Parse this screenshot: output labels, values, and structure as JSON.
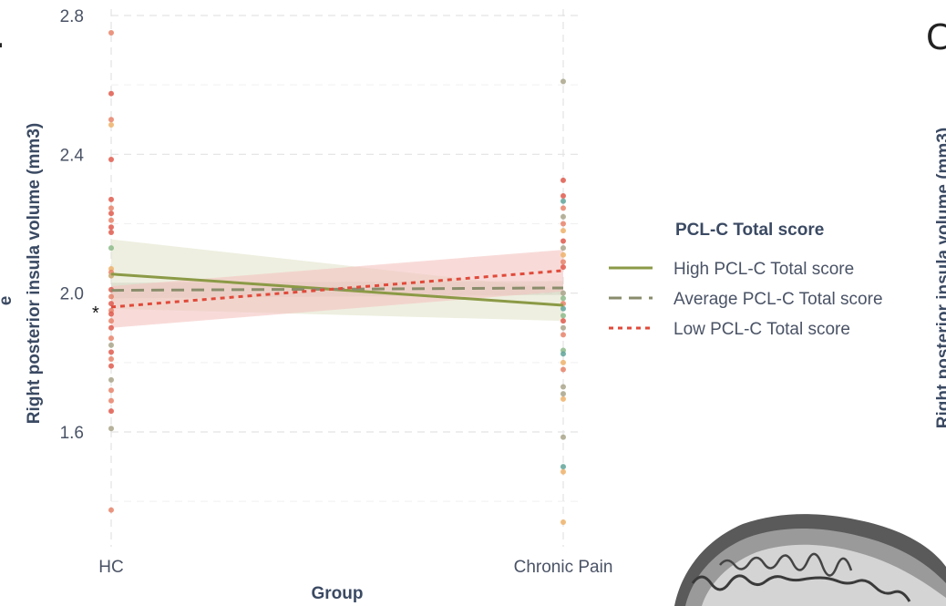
{
  "chart_data": {
    "type": "line",
    "title": "",
    "xlabel": "Group",
    "ylabel": "Right posterior insula volume (mm3)",
    "categories": [
      "HC",
      "Chronic Pain"
    ],
    "ylim": [
      1.27,
      2.81
    ],
    "yticks": [
      1.6,
      2.0,
      2.4,
      2.8
    ],
    "ytick_labels": [
      "1.6",
      "2.0",
      "2.4",
      "2.8"
    ],
    "grid": true,
    "legend_title": "PCL-C Total score",
    "legend_position": "right",
    "significance_marker": "*",
    "series": [
      {
        "name": "High PCL-C Total score",
        "values": [
          2.055,
          1.965
        ],
        "ci_low": [
          1.955,
          1.92
        ],
        "ci_high": [
          2.155,
          2.01
        ],
        "color": "#8b9a46",
        "dash": "solid",
        "fill": "#e3e4cc"
      },
      {
        "name": "Average PCL-C Total score",
        "values": [
          2.008,
          2.015
        ],
        "ci_low": [
          1.985,
          1.995
        ],
        "ci_high": [
          2.03,
          2.035
        ],
        "color": "#8a8d6c",
        "dash": "longdash",
        "fill": "#d6d6c4"
      },
      {
        "name": "Low PCL-C Total score",
        "values": [
          1.96,
          2.065
        ],
        "ci_low": [
          1.9,
          2.005
        ],
        "ci_high": [
          2.02,
          2.125
        ],
        "color": "#e04a3a",
        "dash": "dotted",
        "fill": "#f3c3c0"
      }
    ],
    "points": {
      "HC": [
        {
          "y": 2.75,
          "c": "#e8826a"
        },
        {
          "y": 2.575,
          "c": "#e15a4d"
        },
        {
          "y": 2.5,
          "c": "#e8826a"
        },
        {
          "y": 2.485,
          "c": "#eeb26a"
        },
        {
          "y": 2.385,
          "c": "#e15a4d"
        },
        {
          "y": 2.27,
          "c": "#e15a4d"
        },
        {
          "y": 2.245,
          "c": "#e8826a"
        },
        {
          "y": 2.23,
          "c": "#e15a4d"
        },
        {
          "y": 2.21,
          "c": "#e8826a"
        },
        {
          "y": 2.19,
          "c": "#e15a4d"
        },
        {
          "y": 2.175,
          "c": "#e15a4d"
        },
        {
          "y": 2.13,
          "c": "#8cba8a"
        },
        {
          "y": 2.07,
          "c": "#eeb26a"
        },
        {
          "y": 2.06,
          "c": "#e8826a"
        },
        {
          "y": 2.05,
          "c": "#c9a46a"
        },
        {
          "y": 2.01,
          "c": "#e15a4d"
        },
        {
          "y": 1.99,
          "c": "#e8826a"
        },
        {
          "y": 1.97,
          "c": "#e15a4d"
        },
        {
          "y": 1.95,
          "c": "#e8826a"
        },
        {
          "y": 1.94,
          "c": "#e15a4d"
        },
        {
          "y": 1.92,
          "c": "#e8826a"
        },
        {
          "y": 1.9,
          "c": "#e15a4d"
        },
        {
          "y": 1.87,
          "c": "#e8826a"
        },
        {
          "y": 1.85,
          "c": "#a9a48a"
        },
        {
          "y": 1.83,
          "c": "#e15a4d"
        },
        {
          "y": 1.81,
          "c": "#e8826a"
        },
        {
          "y": 1.79,
          "c": "#e15a4d"
        },
        {
          "y": 1.75,
          "c": "#a9a48a"
        },
        {
          "y": 1.72,
          "c": "#e8826a"
        },
        {
          "y": 1.69,
          "c": "#e8826a"
        },
        {
          "y": 1.66,
          "c": "#e15a4d"
        },
        {
          "y": 1.61,
          "c": "#a9a48a"
        },
        {
          "y": 1.375,
          "c": "#e8826a"
        }
      ],
      "Chronic Pain": [
        {
          "y": 2.61,
          "c": "#a9a48a"
        },
        {
          "y": 2.325,
          "c": "#e15a4d"
        },
        {
          "y": 2.28,
          "c": "#e15a4d"
        },
        {
          "y": 2.265,
          "c": "#5fa59a"
        },
        {
          "y": 2.245,
          "c": "#e8826a"
        },
        {
          "y": 2.22,
          "c": "#a9a48a"
        },
        {
          "y": 2.2,
          "c": "#e8826a"
        },
        {
          "y": 2.18,
          "c": "#eeb26a"
        },
        {
          "y": 2.15,
          "c": "#e15a4d"
        },
        {
          "y": 2.13,
          "c": "#a9a48a"
        },
        {
          "y": 2.11,
          "c": "#eeb26a"
        },
        {
          "y": 2.09,
          "c": "#e8826a"
        },
        {
          "y": 2.075,
          "c": "#e15a4d"
        },
        {
          "y": 2.0,
          "c": "#a9a48a"
        },
        {
          "y": 1.985,
          "c": "#8cba8a"
        },
        {
          "y": 1.97,
          "c": "#e8826a"
        },
        {
          "y": 1.955,
          "c": "#5fa59a"
        },
        {
          "y": 1.935,
          "c": "#8cba8a"
        },
        {
          "y": 1.92,
          "c": "#e15a4d"
        },
        {
          "y": 1.9,
          "c": "#a9a48a"
        },
        {
          "y": 1.88,
          "c": "#e8826a"
        },
        {
          "y": 1.835,
          "c": "#8cba8a"
        },
        {
          "y": 1.825,
          "c": "#5fa59a"
        },
        {
          "y": 1.8,
          "c": "#eeb26a"
        },
        {
          "y": 1.78,
          "c": "#e8826a"
        },
        {
          "y": 1.73,
          "c": "#a9a48a"
        },
        {
          "y": 1.71,
          "c": "#a9a48a"
        },
        {
          "y": 1.695,
          "c": "#eeb26a"
        },
        {
          "y": 1.585,
          "c": "#a9a48a"
        },
        {
          "y": 1.5,
          "c": "#5fa59a"
        },
        {
          "y": 1.485,
          "c": "#eeb26a"
        },
        {
          "y": 1.34,
          "c": "#eeb26a"
        }
      ]
    }
  },
  "panels": {
    "left_letter": ".",
    "right_letter": "C",
    "right_ylabel_fragment": "Right posterior insula volume (mm3)",
    "left_edge_fragment": "e"
  }
}
